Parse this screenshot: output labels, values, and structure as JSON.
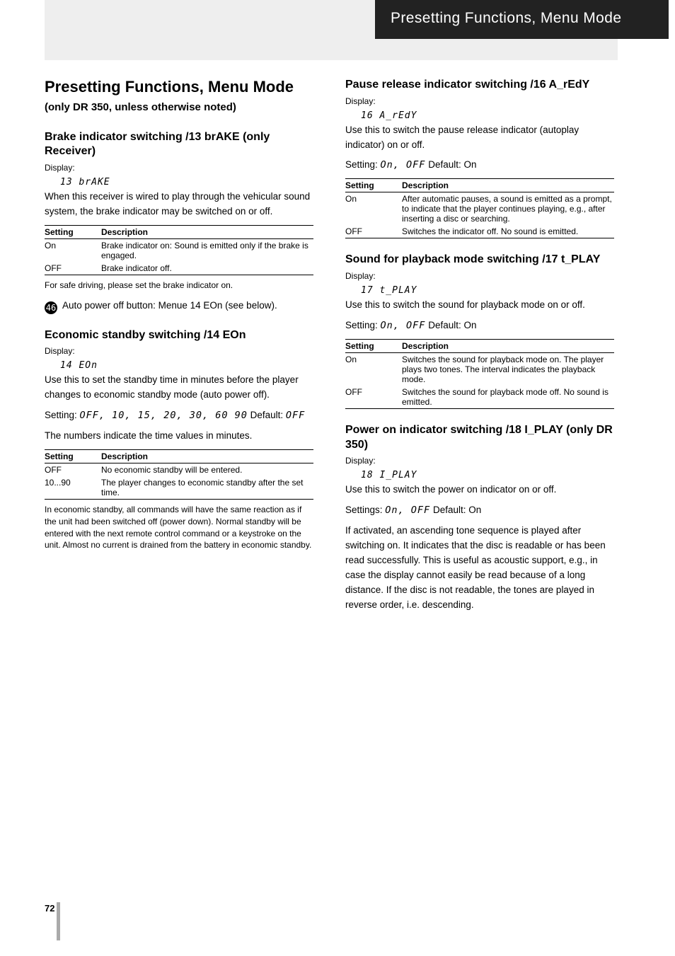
{
  "header_tab": "Presetting Functions, Menu Mode",
  "page_number": "72",
  "s13": {
    "title": "Brake indicator switching /13 brAKE (only Receiver)",
    "disp_label": "Display:",
    "disp_value": "13 brAKE",
    "desc": "When this receiver is wired to play through the vehicular sound system, the brake indicator may be switched on or off.",
    "table_h1": "Setting",
    "table_h2": "Description",
    "rows": [
      [
        "On",
        "Brake indicator on: Sound is emitted only if the brake is engaged."
      ],
      [
        "OFF",
        "Brake indicator off."
      ]
    ],
    "note": "For safe driving, please set the brake indicator on."
  },
  "s14": {
    "prehead": "Economic standby switching /14 EOn",
    "title": "Economic standby switching /14 EOn",
    "button_num": "46",
    "button_lead": "Auto power off button: Menue 14 EOn (see below).",
    "disp_label": "Display:",
    "disp_value": "14 EOn",
    "desc": "Use this to set the standby time in minutes before the player changes to economic standby mode (auto power off).",
    "setting_label": "Setting: ",
    "setting_values": "OFF, 10, 15, 20, 30, 60 90",
    "default_label": " Default: ",
    "default_value": "OFF",
    "desc2": "The numbers indicate the time values in minutes.",
    "table_h1": "Setting",
    "table_h2": "Description",
    "rows": [
      [
        "OFF",
        "No economic standby will be entered."
      ],
      [
        "10...90",
        "The player changes to economic standby after the set time."
      ]
    ],
    "note": "In economic standby, all commands will have the same reaction as if the unit had been switched off (power down). Normal standby will be entered with the next remote control command or a keystroke on the unit. Almost no current is drained from the battery in economic standby."
  },
  "s16": {
    "title": "Pause release indicator switching /16 A_rEdY",
    "disp_label": "Display:",
    "disp_value": "16 A_rEdY",
    "desc": "Use this to switch the pause release indicator (autoplay indicator) on or off.",
    "setting_label": "Setting: ",
    "setting_values": "On, OFF",
    "default_label": " Default: On",
    "table_h1": "Setting",
    "table_h2": "Description",
    "rows": [
      [
        "On",
        "After automatic pauses, a sound is emitted as a prompt, to indicate that the player continues playing, e.g., after inserting a disc or searching."
      ],
      [
        "OFF",
        "Switches the indicator off. No sound is emitted."
      ]
    ]
  },
  "s17": {
    "title": "Sound for playback mode switching /17 t_PLAY",
    "disp_label": "Display:",
    "disp_value": "17 t_PLAY",
    "desc": "Use this to switch the sound for playback mode on or off.",
    "setting_label": "Setting: ",
    "setting_values": "On, OFF",
    "default_label": " Default: On",
    "table_h1": "Setting",
    "table_h2": "Description",
    "rows": [
      [
        "On",
        "Switches the sound for playback mode on. The player plays two tones. The interval indicates the playback mode."
      ],
      [
        "OFF",
        "Switches the sound for playback mode off. No sound is emitted."
      ]
    ]
  },
  "s18": {
    "title": "Power on indicator switching /18 I_PLAY (only DR 350)",
    "disp_label": "Display:",
    "disp_value": "18 I_PLAY",
    "desc": "Use this to switch the power on indicator on or off.",
    "setting_label": "Settings: ",
    "setting_values": "On, OFF",
    "default_label": " Default: On",
    "desc2": "If activated, an ascending tone sequence is played after switching on. It indicates that the disc is readable or has been read successfully. This is useful as acoustic support, e.g., in case the display cannot easily be read because of a long distance. If the disc is not readable, the tones are played in reverse order, i.e. descending."
  }
}
